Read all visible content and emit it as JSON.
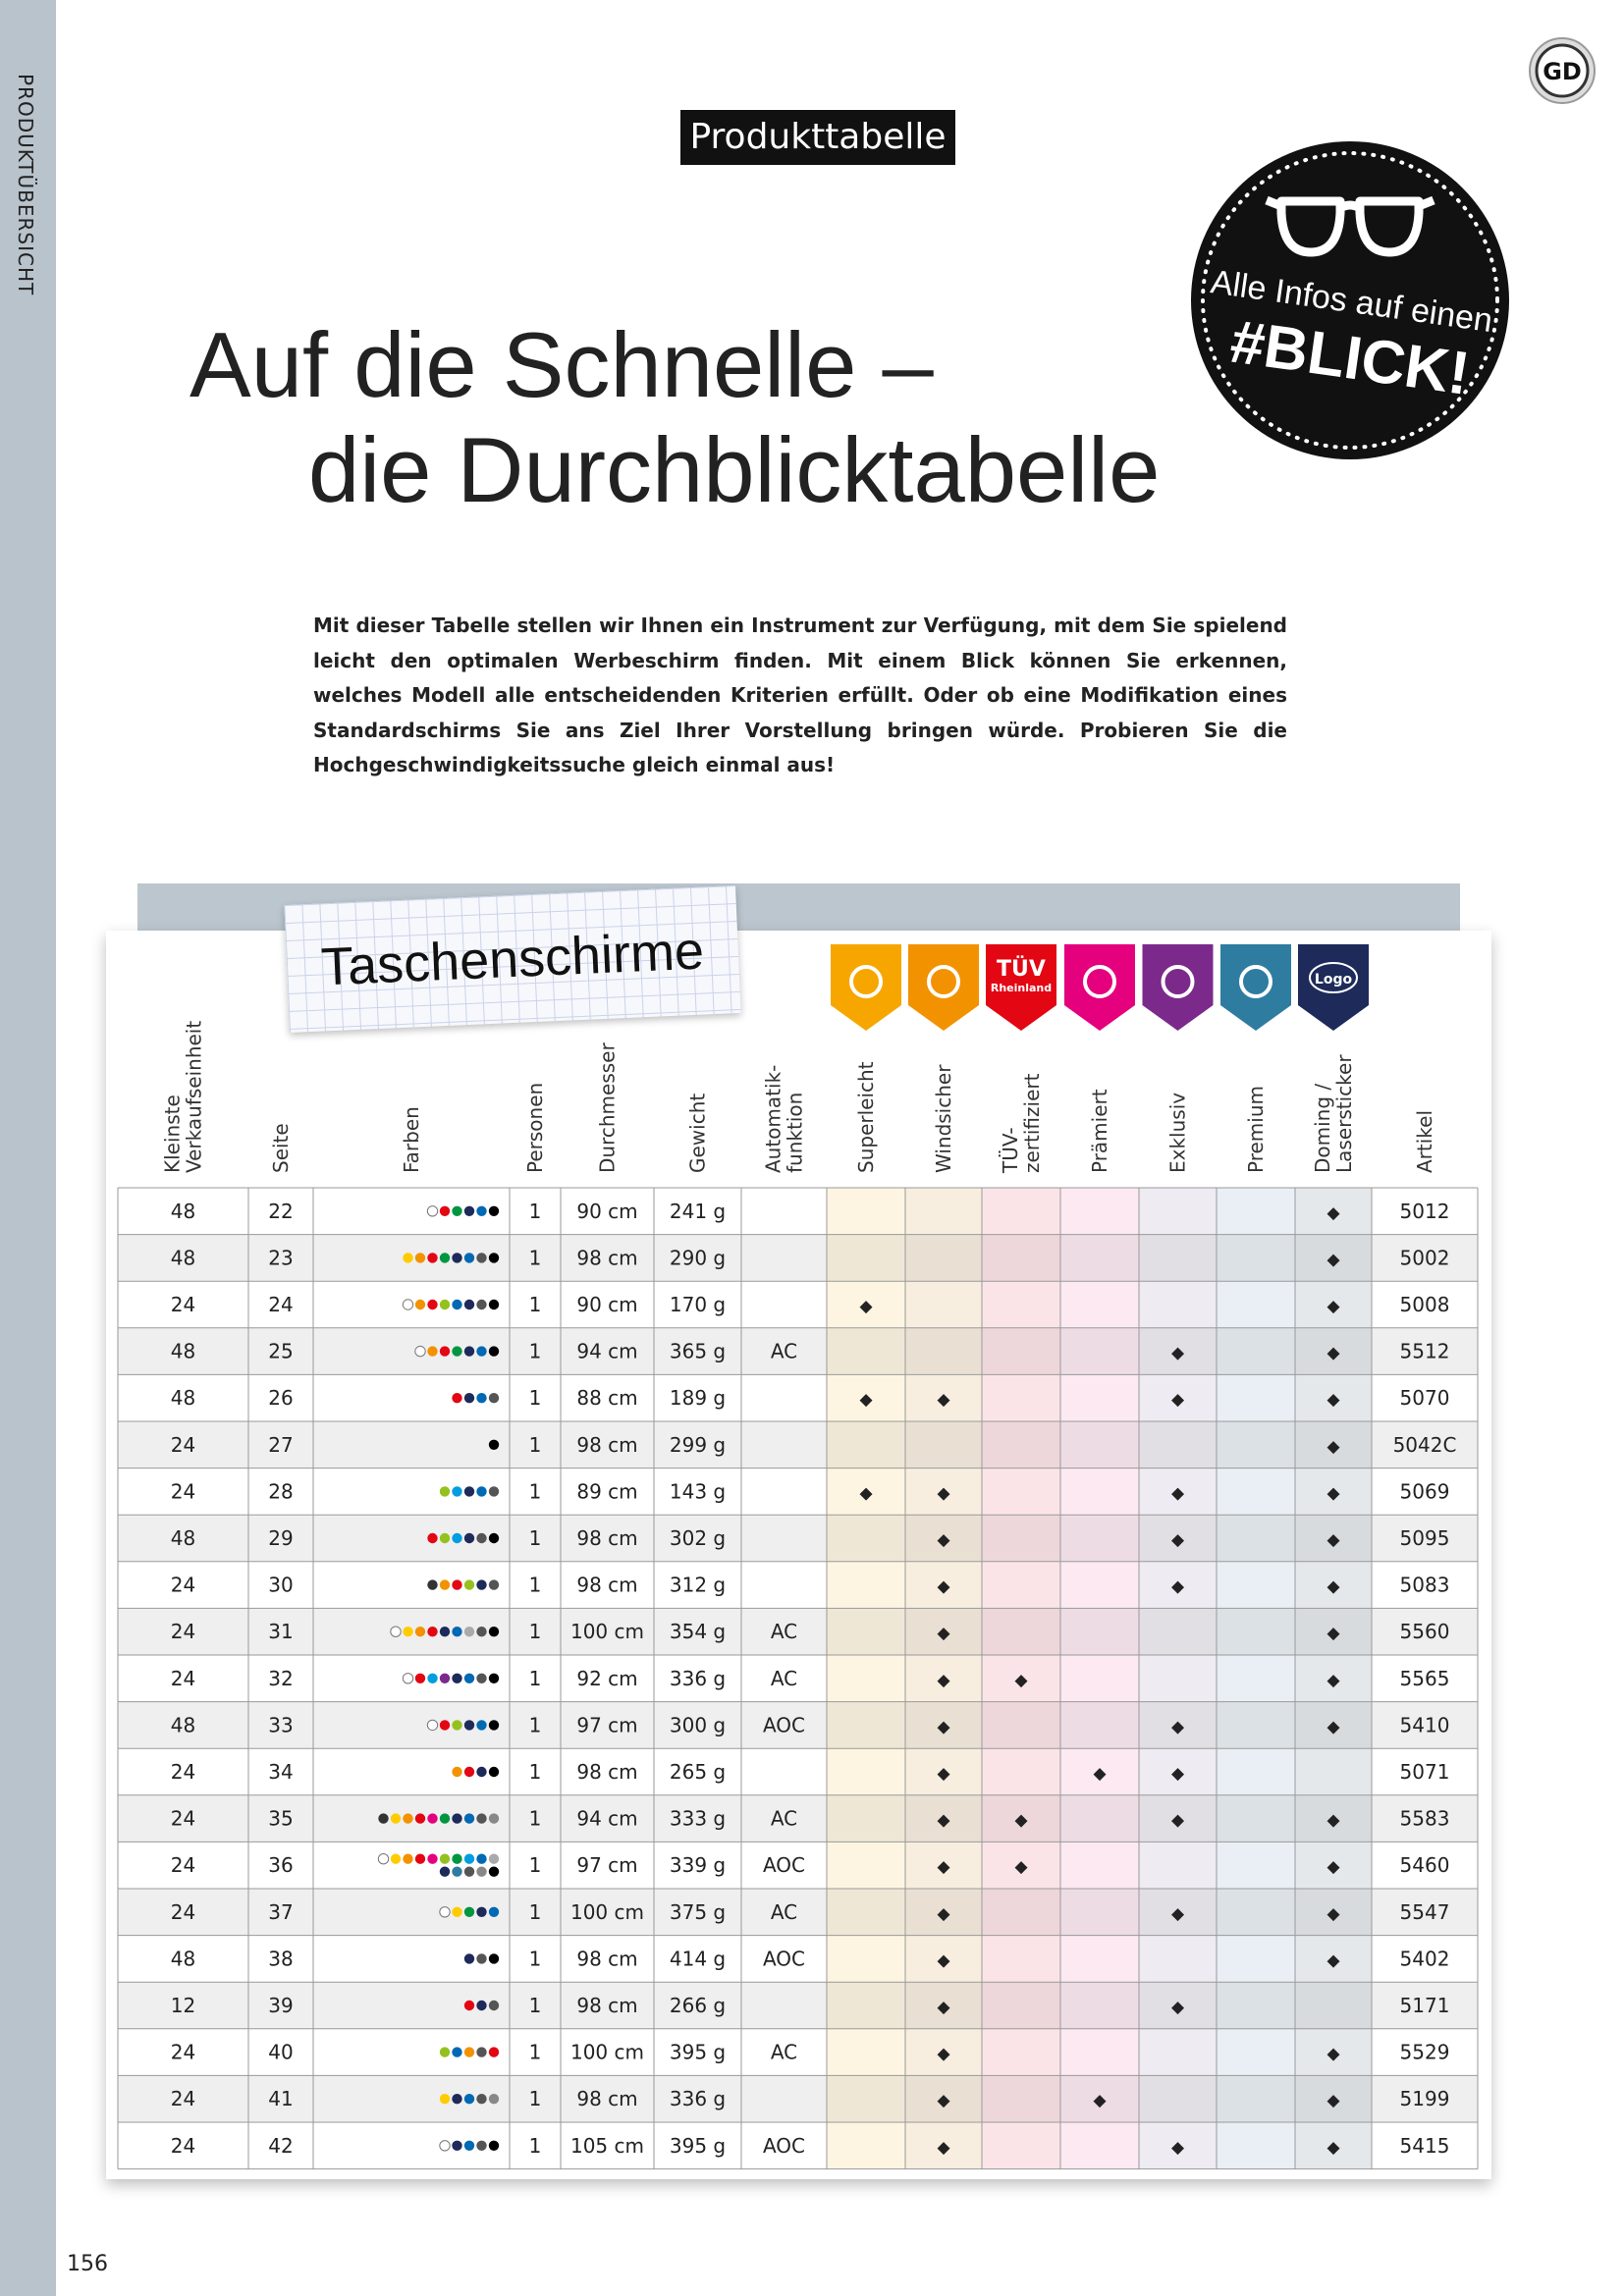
{
  "sidebar": "PRODUKTÜBERSICHT",
  "logo": "GD",
  "tag": "Produkttabelle",
  "title": [
    "Auf die Schnelle –",
    "die Durchblicktabelle"
  ],
  "intro": "Mit dieser Tabelle stellen wir Ihnen ein Instrument zur Verfügung, mit dem Sie spielend leicht den optimalen Werbeschirm finden. Mit einem Blick können Sie erkennen, welches Modell alle entscheidenden Kriterien erfüllt. Oder ob eine Modifikation eines Standardschirms Sie ans Ziel Ihrer Vorstellung bringen würde. Probieren Sie die Hochgeschwindigkeitssuche gleich einmal aus!",
  "badge": [
    "Alle Infos auf einen",
    "#BLICK!"
  ],
  "table": {
    "title": "Taschenschirme",
    "icons": [
      {
        "color": "#f7a600"
      },
      {
        "color": "#f39200"
      },
      {
        "color": "#e30613",
        "label": "TÜV",
        "sublabel": "Rheinland"
      },
      {
        "color": "#e5007d"
      },
      {
        "color": "#7b2a8c"
      },
      {
        "color": "#2e7ca0"
      },
      {
        "color": "#1d2a5a",
        "label": "Logo"
      }
    ],
    "headers": [
      [
        "Kleinste",
        "Verkaufseinheit"
      ],
      [
        "Seite"
      ],
      [
        "Farben"
      ],
      [
        "Personen"
      ],
      [
        "Durchmesser"
      ],
      [
        "Gewicht"
      ],
      [
        "Automatik-",
        "funktion"
      ],
      [
        "Superleicht"
      ],
      [
        "Windsicher"
      ],
      [
        "TÜV-",
        "zertifiziert"
      ],
      [
        "Prämiert"
      ],
      [
        "Exklusiv"
      ],
      [
        "Premium"
      ],
      [
        "Doming /",
        "Lasersticker"
      ],
      [
        "Artikel"
      ]
    ],
    "rows": [
      [
        "48",
        "22",
        [
          "#fff",
          "#e30613",
          "#009640",
          "#1d2a5a",
          "#0069b4",
          "#000"
        ],
        "1",
        "90 cm",
        "241 g",
        null,
        null,
        null,
        null,
        null,
        null,
        null,
        "◆",
        "5012"
      ],
      [
        "48",
        "23",
        [
          "#fc0",
          "#f39200",
          "#e30613",
          "#009640",
          "#1d2a5a",
          "#0069b4",
          "#555",
          "#000"
        ],
        "1",
        "98 cm",
        "290 g",
        null,
        null,
        null,
        null,
        null,
        null,
        null,
        "◆",
        "5002"
      ],
      [
        "24",
        "24",
        [
          "#fff",
          "#f39200",
          "#e30613",
          "#95c11f",
          "#0069b4",
          "#1d2a5a",
          "#555",
          "#000"
        ],
        "1",
        "90 cm",
        "170 g",
        null,
        "◆",
        null,
        null,
        null,
        null,
        null,
        "◆",
        "5008"
      ],
      [
        "48",
        "25",
        [
          "#fff",
          "#f39200",
          "#e30613",
          "#009640",
          "#1d2a5a",
          "#0069b4",
          "#000"
        ],
        "1",
        "94 cm",
        "365 g",
        "AC",
        null,
        null,
        null,
        null,
        "◆",
        null,
        "◆",
        "5512"
      ],
      [
        "48",
        "26",
        [
          "#e30613",
          "#1d2a5a",
          "#0069b4",
          "#555"
        ],
        "1",
        "88 cm",
        "189 g",
        null,
        "◆",
        "◆",
        null,
        null,
        "◆",
        null,
        "◆",
        "5070"
      ],
      [
        "24",
        "27",
        [
          "#000"
        ],
        "1",
        "98 cm",
        "299 g",
        null,
        null,
        null,
        null,
        null,
        null,
        null,
        "◆",
        "5042C"
      ],
      [
        "24",
        "28",
        [
          "#95c11f",
          "#009ee0",
          "#1d2a5a",
          "#0069b4",
          "#555"
        ],
        "1",
        "89 cm",
        "143 g",
        null,
        "◆",
        "◆",
        null,
        null,
        "◆",
        null,
        "◆",
        "5069"
      ],
      [
        "48",
        "29",
        [
          "#e30613",
          "#95c11f",
          "#009ee0",
          "#1d2a5a",
          "#555",
          "#000"
        ],
        "1",
        "98 cm",
        "302 g",
        null,
        null,
        "◆",
        null,
        null,
        "◆",
        null,
        "◆",
        "5095"
      ],
      [
        "24",
        "30",
        [
          "#333",
          "#f39200",
          "#e30613",
          "#95c11f",
          "#1d2a5a",
          "#555"
        ],
        "1",
        "98 cm",
        "312 g",
        null,
        null,
        "◆",
        null,
        null,
        "◆",
        null,
        "◆",
        "5083"
      ],
      [
        "24",
        "31",
        [
          "#fff",
          "#fc0",
          "#f39200",
          "#e30613",
          "#1d2a5a",
          "#0069b4",
          "#aaa",
          "#555",
          "#000"
        ],
        "1",
        "100 cm",
        "354 g",
        "AC",
        null,
        "◆",
        null,
        null,
        null,
        null,
        "◆",
        "5560"
      ],
      [
        "24",
        "32",
        [
          "#fff",
          "#e30613",
          "#009ee0",
          "#7b2a8c",
          "#1d2a5a",
          "#0069b4",
          "#555",
          "#000"
        ],
        "1",
        "92 cm",
        "336 g",
        "AC",
        null,
        "◆",
        "◆",
        null,
        null,
        null,
        "◆",
        "5565"
      ],
      [
        "48",
        "33",
        [
          "#fff",
          "#e30613",
          "#95c11f",
          "#1d2a5a",
          "#0069b4",
          "#000"
        ],
        "1",
        "97 cm",
        "300 g",
        "AOC",
        null,
        "◆",
        null,
        null,
        "◆",
        null,
        "◆",
        "5410"
      ],
      [
        "24",
        "34",
        [
          "#f39200",
          "#e30613",
          "#1d2a5a",
          "#000"
        ],
        "1",
        "98 cm",
        "265 g",
        null,
        null,
        "◆",
        null,
        "◆",
        "◆",
        null,
        null,
        "5071"
      ],
      [
        "24",
        "35",
        [
          "#333",
          "#fc0",
          "#f39200",
          "#e30613",
          "#e5007d",
          "#009640",
          "#1d2a5a",
          "#0069b4",
          "#555",
          "#888"
        ],
        "1",
        "94 cm",
        "333 g",
        "AC",
        null,
        "◆",
        "◆",
        null,
        "◆",
        null,
        "◆",
        "5583"
      ],
      [
        "24",
        "36",
        [
          "#fff",
          "#fc0",
          "#f39200",
          "#e30613",
          "#e5007d",
          "#95c11f",
          "#009640",
          "#009ee0",
          "#0069b4",
          "#aaa",
          "#1d2a5a",
          "#2e7ca0",
          "#555",
          "#888",
          "#000"
        ],
        "1",
        "97 cm",
        "339 g",
        "AOC",
        null,
        "◆",
        "◆",
        null,
        null,
        null,
        "◆",
        "5460"
      ],
      [
        "24",
        "37",
        [
          "#fff",
          "#fc0",
          "#009640",
          "#1d2a5a",
          "#0069b4"
        ],
        "1",
        "100 cm",
        "375 g",
        "AC",
        null,
        "◆",
        null,
        null,
        "◆",
        null,
        "◆",
        "5547"
      ],
      [
        "48",
        "38",
        [
          "#1d2a5a",
          "#555",
          "#000"
        ],
        "1",
        "98 cm",
        "414 g",
        "AOC",
        null,
        "◆",
        null,
        null,
        null,
        null,
        "◆",
        "5402"
      ],
      [
        "12",
        "39",
        [
          "#e30613",
          "#1d2a5a",
          "#555"
        ],
        "1",
        "98 cm",
        "266 g",
        null,
        null,
        "◆",
        null,
        null,
        "◆",
        null,
        null,
        "5171"
      ],
      [
        "24",
        "40",
        [
          "#95c11f",
          "#0069b4",
          "#f39200",
          "#555",
          "#e30613"
        ],
        "1",
        "100 cm",
        "395 g",
        "AC",
        null,
        "◆",
        null,
        null,
        null,
        null,
        "◆",
        "5529"
      ],
      [
        "24",
        "41",
        [
          "#fc0",
          "#1d2a5a",
          "#0069b4",
          "#555",
          "#888"
        ],
        "1",
        "98 cm",
        "336 g",
        null,
        null,
        "◆",
        null,
        "◆",
        null,
        null,
        "◆",
        "5199"
      ],
      [
        "24",
        "42",
        [
          "#fff",
          "#1d2a5a",
          "#0069b4",
          "#555",
          "#000"
        ],
        "1",
        "105 cm",
        "395 g",
        "AOC",
        null,
        "◆",
        null,
        null,
        "◆",
        null,
        "◆",
        "5415"
      ]
    ]
  },
  "page_number": "156"
}
